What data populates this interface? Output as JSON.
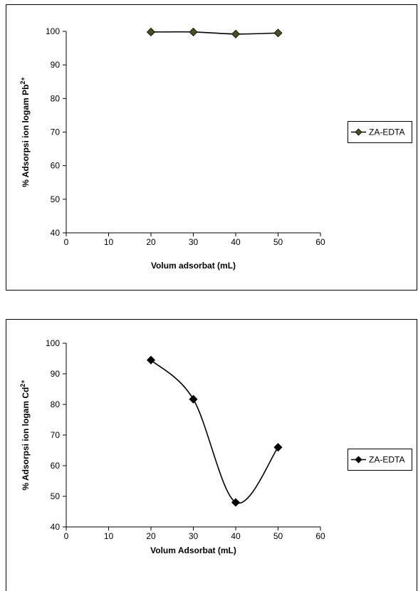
{
  "chart_data": [
    {
      "type": "line",
      "xlabel": "Volum adsorbat (mL)",
      "ylabel_prefix": "% Adsorpsi ion logam Pb",
      "ylabel_sup": "2+",
      "xlim": [
        0,
        60
      ],
      "ylim": [
        40,
        100
      ],
      "xticks": [
        "0",
        "10",
        "20",
        "30",
        "40",
        "50",
        "60"
      ],
      "yticks": [
        "40",
        "50",
        "60",
        "70",
        "80",
        "90",
        "100"
      ],
      "grid": false,
      "legend_position": "right",
      "series": [
        {
          "name": "ZA-EDTA",
          "color": "#000000",
          "marker_color": "#4d4d1f",
          "marker": "diamond",
          "x": [
            20,
            30,
            40,
            50
          ],
          "y": [
            99.8,
            99.8,
            99.2,
            99.5
          ]
        }
      ]
    },
    {
      "type": "line",
      "xlabel": "Volum Adsorbat (mL)",
      "ylabel_prefix": "% Adsorpsi ion logam Cd",
      "ylabel_sup": "2+",
      "xlim": [
        0,
        60
      ],
      "ylim": [
        40,
        100
      ],
      "xticks": [
        "0",
        "10",
        "20",
        "30",
        "40",
        "50",
        "60"
      ],
      "yticks": [
        "40",
        "50",
        "60",
        "70",
        "80",
        "90",
        "100"
      ],
      "grid": false,
      "legend_position": "right",
      "series": [
        {
          "name": "ZA-EDTA",
          "color": "#000000",
          "marker_color": "#000000",
          "marker": "diamond",
          "x": [
            20,
            30,
            40,
            50
          ],
          "y": [
            94.5,
            81.7,
            48.0,
            66.0
          ]
        }
      ]
    }
  ]
}
